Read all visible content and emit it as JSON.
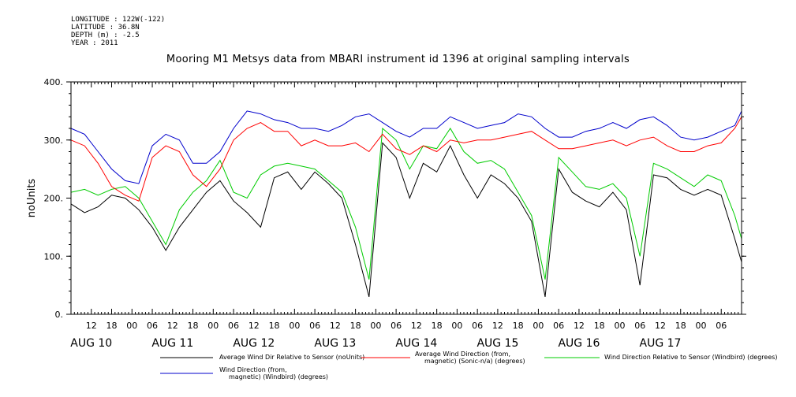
{
  "header": {
    "meta_lines": [
      "LONGITUDE : 122W(-122)",
      "LATITUDE : 36.8N",
      "DEPTH (m) : -2.5",
      "YEAR : 2011"
    ],
    "title": "Mooring M1 Metsys data from MBARI instrument id 1396 at original sampling intervals"
  },
  "chart_data": {
    "type": "line",
    "title": "Mooring M1 Metsys data from MBARI instrument id 1396 at original sampling intervals",
    "ylabel": "noUnits",
    "xlabel": "",
    "ylim": [
      0,
      400
    ],
    "y_ticks": [
      "0.",
      "100.",
      "200.",
      "300.",
      "400."
    ],
    "x_range_hours": [
      0,
      198
    ],
    "hour_ticks": [
      "12",
      "18",
      "00",
      "06",
      "12",
      "18",
      "00",
      "06",
      "12",
      "18",
      "00",
      "06",
      "12",
      "18",
      "00",
      "06",
      "12",
      "18",
      "00",
      "06",
      "12",
      "18",
      "00",
      "06",
      "12",
      "18",
      "00",
      "06",
      "12",
      "18",
      "00",
      "06"
    ],
    "day_labels": [
      "AUG 10",
      "AUG 11",
      "AUG 12",
      "AUG 13",
      "AUG 14",
      "AUG 15",
      "AUG 16",
      "AUG 17"
    ],
    "grid": false,
    "legend_position": "bottom",
    "series": [
      {
        "name": "Average Wind Dir Relative to Sensor (noUnits)",
        "color": "#000000",
        "x": [
          0,
          4,
          8,
          12,
          16,
          20,
          24,
          28,
          32,
          36,
          40,
          44,
          48,
          52,
          56,
          60,
          64,
          68,
          72,
          76,
          80,
          84,
          88,
          92,
          96,
          100,
          104,
          108,
          112,
          116,
          120,
          124,
          128,
          132,
          136,
          140,
          144,
          148,
          152,
          156,
          160,
          164,
          168,
          172,
          176,
          180,
          184,
          188,
          192,
          196,
          198
        ],
        "values": [
          190,
          175,
          185,
          205,
          200,
          180,
          150,
          110,
          150,
          180,
          210,
          230,
          195,
          175,
          150,
          235,
          245,
          215,
          245,
          225,
          200,
          120,
          30,
          295,
          270,
          200,
          260,
          245,
          290,
          240,
          200,
          240,
          225,
          200,
          160,
          30,
          250,
          210,
          195,
          185,
          210,
          180,
          50,
          240,
          235,
          215,
          205,
          215,
          205,
          130,
          90
        ]
      },
      {
        "name": "Average Wind Direction (from, magnetic) (Sonic-n/a) (degrees)",
        "color": "#ff0000",
        "x": [
          0,
          4,
          8,
          12,
          16,
          20,
          24,
          28,
          32,
          36,
          40,
          44,
          48,
          52,
          56,
          60,
          64,
          68,
          72,
          76,
          80,
          84,
          88,
          92,
          96,
          100,
          104,
          108,
          112,
          116,
          120,
          124,
          128,
          132,
          136,
          140,
          144,
          148,
          152,
          156,
          160,
          164,
          168,
          172,
          176,
          180,
          184,
          188,
          192,
          196,
          198
        ],
        "values": [
          300,
          290,
          260,
          220,
          205,
          195,
          270,
          290,
          280,
          240,
          220,
          250,
          300,
          320,
          330,
          315,
          315,
          290,
          300,
          290,
          290,
          295,
          280,
          310,
          285,
          275,
          290,
          280,
          300,
          295,
          300,
          300,
          305,
          310,
          315,
          300,
          285,
          285,
          290,
          295,
          300,
          290,
          300,
          305,
          290,
          280,
          280,
          290,
          295,
          320,
          340
        ]
      },
      {
        "name": "Wind Direction Relative to Sensor (Windbird) (degrees)",
        "color": "#00cc00",
        "x": [
          0,
          4,
          8,
          12,
          16,
          20,
          24,
          28,
          32,
          36,
          40,
          44,
          48,
          52,
          56,
          60,
          64,
          68,
          72,
          76,
          80,
          84,
          88,
          92,
          96,
          100,
          104,
          108,
          112,
          116,
          120,
          124,
          128,
          132,
          136,
          140,
          144,
          148,
          152,
          156,
          160,
          164,
          168,
          172,
          176,
          180,
          184,
          188,
          192,
          196,
          198
        ],
        "values": [
          210,
          215,
          205,
          215,
          220,
          200,
          160,
          120,
          180,
          210,
          230,
          265,
          210,
          200,
          240,
          255,
          260,
          255,
          250,
          230,
          210,
          150,
          60,
          320,
          300,
          250,
          290,
          285,
          320,
          280,
          260,
          265,
          250,
          210,
          170,
          60,
          270,
          245,
          220,
          215,
          225,
          200,
          100,
          260,
          250,
          235,
          220,
          240,
          230,
          170,
          130
        ]
      },
      {
        "name": "Wind Direction (from, magnetic) (Windbird) (degrees)",
        "color": "#0000cc",
        "x": [
          0,
          4,
          8,
          12,
          16,
          20,
          24,
          28,
          32,
          36,
          40,
          44,
          48,
          52,
          56,
          60,
          64,
          68,
          72,
          76,
          80,
          84,
          88,
          92,
          96,
          100,
          104,
          108,
          112,
          116,
          120,
          124,
          128,
          132,
          136,
          140,
          144,
          148,
          152,
          156,
          160,
          164,
          168,
          172,
          176,
          180,
          184,
          188,
          192,
          196,
          198
        ],
        "values": [
          320,
          310,
          280,
          250,
          230,
          225,
          290,
          310,
          300,
          260,
          260,
          280,
          320,
          350,
          345,
          335,
          330,
          320,
          320,
          315,
          325,
          340,
          345,
          330,
          315,
          305,
          320,
          320,
          340,
          330,
          320,
          325,
          330,
          345,
          340,
          320,
          305,
          305,
          315,
          320,
          330,
          320,
          335,
          340,
          325,
          305,
          300,
          305,
          315,
          325,
          350
        ]
      }
    ]
  }
}
